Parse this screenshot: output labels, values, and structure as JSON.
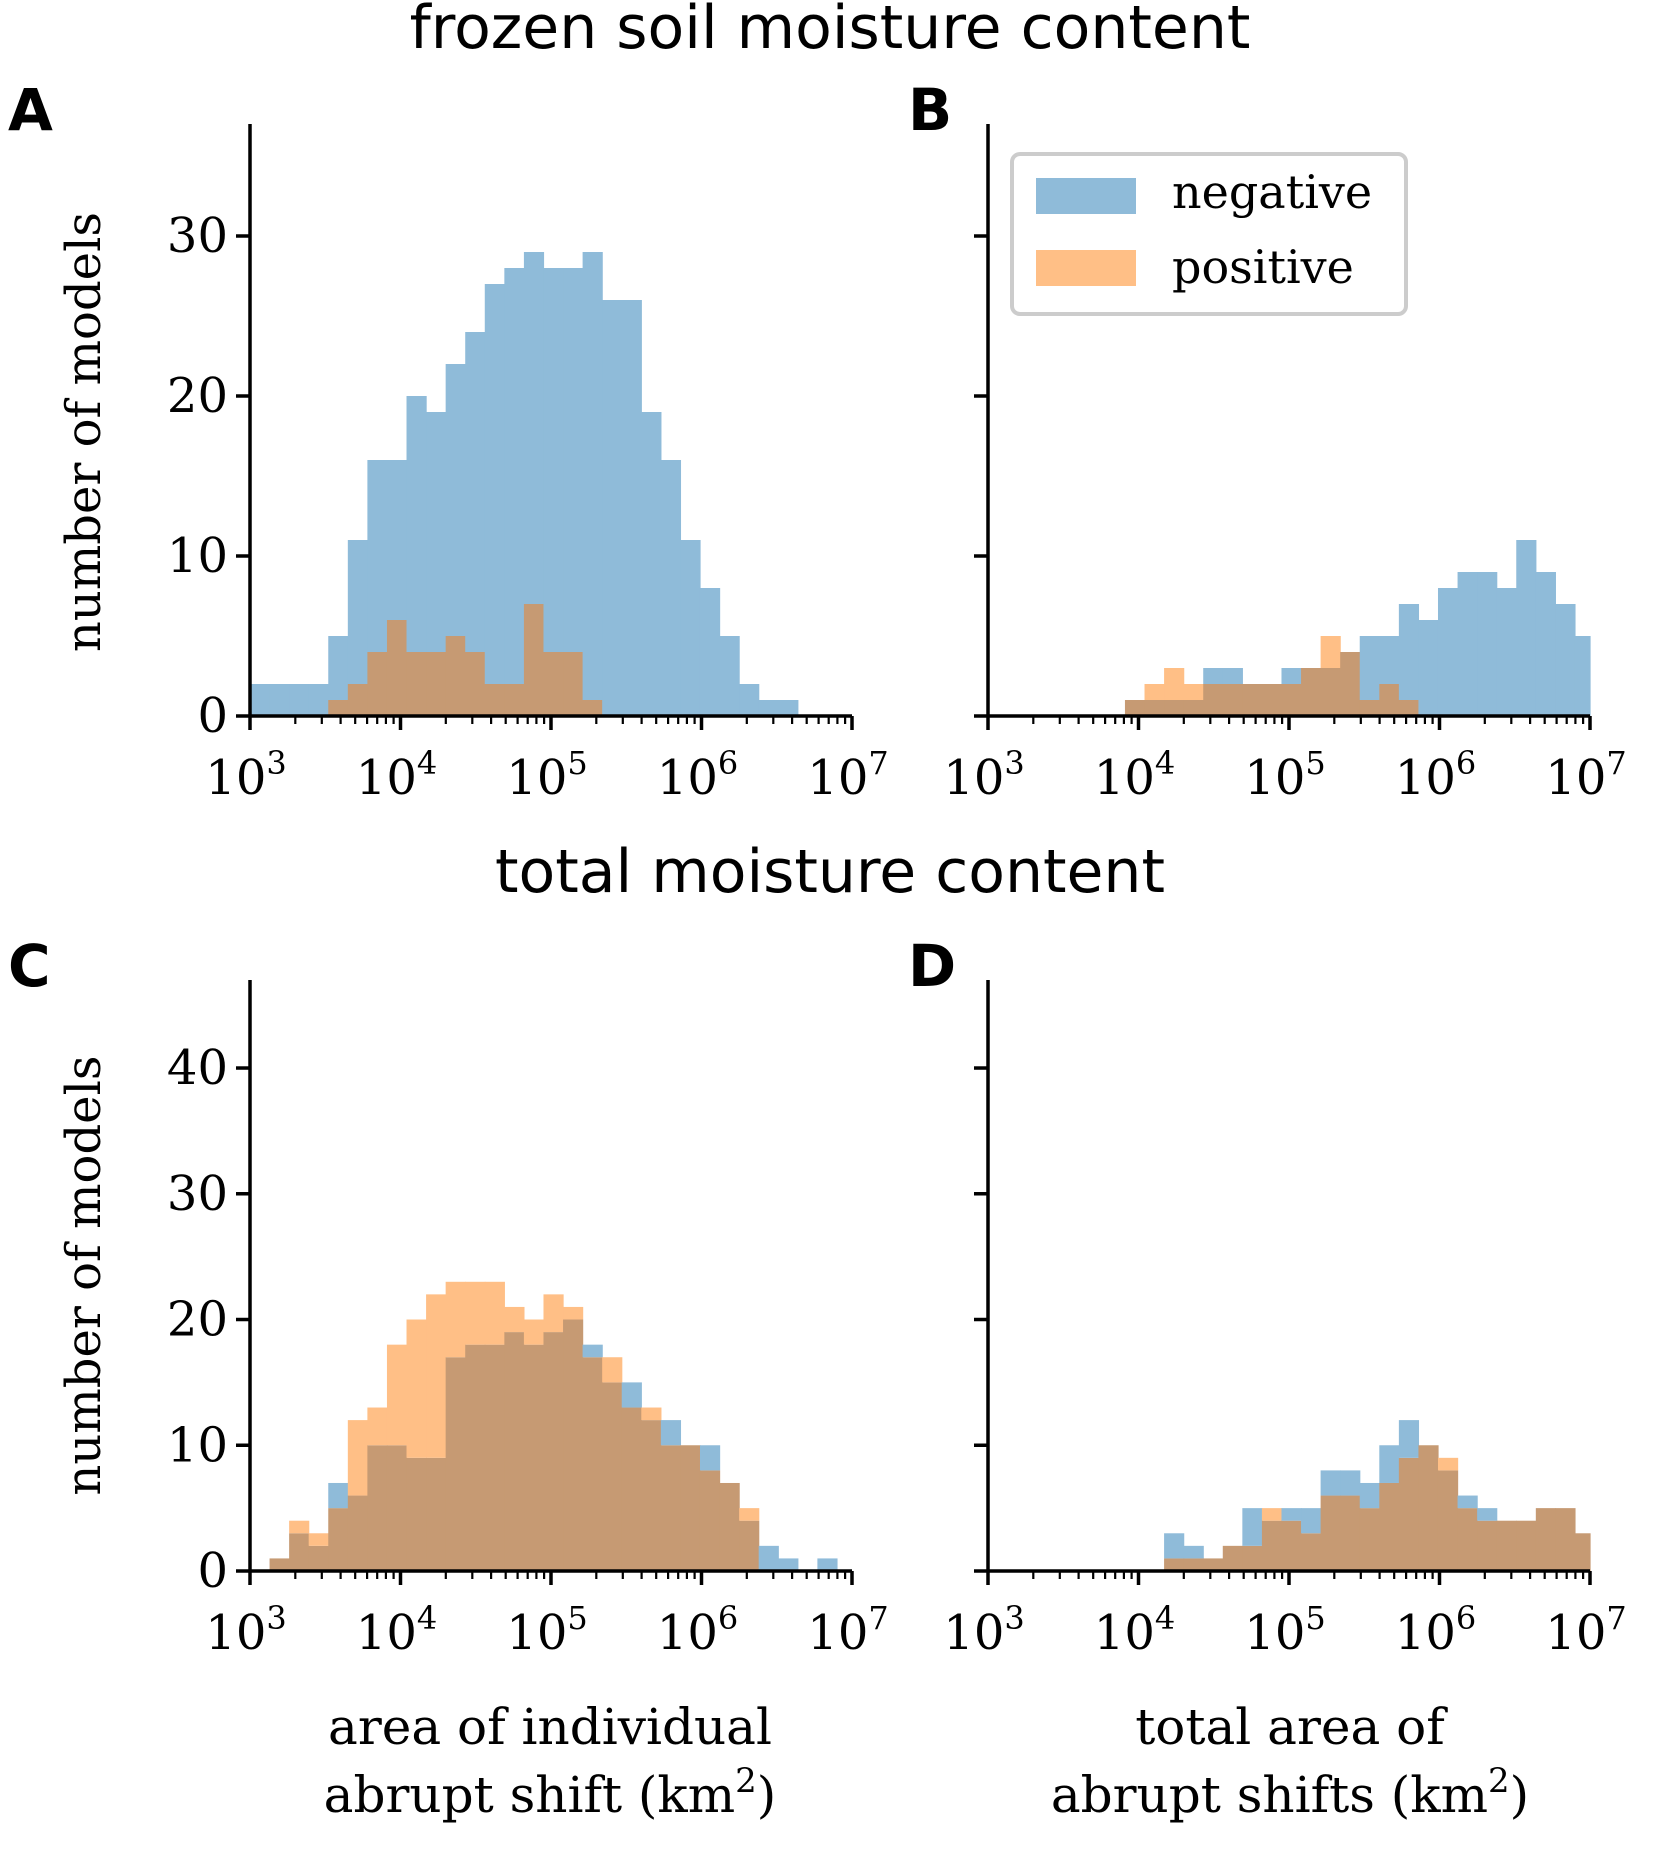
{
  "figure": {
    "top_title": "frozen soil moisture content",
    "bottom_title": "total moisture content"
  },
  "colors": {
    "negative": "#8fbbd9",
    "positive": "#ffbf86",
    "overlap": "#c69a73",
    "axis": "#000000"
  },
  "legend": {
    "negative": "negative",
    "positive": "positive"
  },
  "x_axis": {
    "log_min": 3,
    "log_max": 7,
    "tick_base": "10",
    "tick_exponents": [
      "3",
      "4",
      "5",
      "6",
      "7"
    ],
    "label_left_line1": "area of individual",
    "label_left_line2": "abrupt shift (km",
    "label_right_line1": "total area of",
    "label_right_line2": "abrupt shifts (km",
    "label_sup": "2",
    "label_close": ")"
  },
  "y_label": "number of models",
  "chart_data": [
    {
      "panel": "A",
      "type": "bar",
      "title": "frozen soil moisture content",
      "xlabel": "",
      "ylabel": "number of models",
      "xscale": "log",
      "xlim": [
        1000,
        10000000
      ],
      "ylim": [
        0,
        37
      ],
      "yticks": [
        "0",
        "10",
        "20",
        "30"
      ],
      "bin_start_log10": 3.0,
      "bin_width_log10": 0.13,
      "series": [
        {
          "name": "negative",
          "values": [
            2,
            2,
            2,
            2,
            5,
            11,
            16,
            16,
            20,
            19,
            22,
            24,
            27,
            28,
            29,
            28,
            28,
            29,
            26,
            26,
            19,
            16,
            11,
            8,
            5,
            2,
            1,
            1,
            0,
            0,
            0
          ]
        },
        {
          "name": "positive",
          "values": [
            0,
            0,
            0,
            0,
            1,
            2,
            4,
            6,
            4,
            4,
            5,
            4,
            2,
            2,
            7,
            4,
            4,
            1,
            0,
            0,
            0,
            0,
            0,
            0,
            0,
            0,
            0,
            0,
            0,
            0,
            0
          ]
        }
      ]
    },
    {
      "panel": "B",
      "type": "bar",
      "title": "",
      "xlabel": "",
      "ylabel": "",
      "xscale": "log",
      "xlim": [
        1000,
        10000000
      ],
      "ylim": [
        0,
        37
      ],
      "yticks": [
        "0",
        "10",
        "20",
        "30"
      ],
      "bin_start_log10": 3.0,
      "bin_width_log10": 0.13,
      "series": [
        {
          "name": "negative",
          "values": [
            0,
            0,
            0,
            0,
            0,
            0,
            0,
            1,
            1,
            1,
            1,
            3,
            3,
            2,
            2,
            3,
            3,
            3,
            4,
            5,
            5,
            7,
            6,
            8,
            9,
            9,
            8,
            11,
            9,
            7,
            5
          ]
        },
        {
          "name": "positive",
          "values": [
            0,
            0,
            0,
            0,
            0,
            0,
            0,
            1,
            2,
            3,
            2,
            2,
            2,
            2,
            2,
            2,
            3,
            5,
            4,
            1,
            2,
            1,
            0,
            0,
            0,
            0,
            0,
            0,
            0,
            0,
            0
          ]
        }
      ],
      "legend": [
        "negative",
        "positive"
      ]
    },
    {
      "panel": "C",
      "type": "bar",
      "title": "total moisture content",
      "xlabel": "area of individual abrupt shift (km2)",
      "ylabel": "number of models",
      "xscale": "log",
      "xlim": [
        1000,
        10000000
      ],
      "ylim": [
        0,
        47
      ],
      "yticks": [
        "0",
        "10",
        "20",
        "30",
        "40"
      ],
      "bin_start_log10": 3.0,
      "bin_width_log10": 0.13,
      "series": [
        {
          "name": "negative",
          "values": [
            0,
            1,
            3,
            2,
            7,
            6,
            10,
            10,
            9,
            9,
            17,
            18,
            18,
            19,
            18,
            19,
            20,
            18,
            15,
            15,
            12,
            12,
            10,
            10,
            7,
            4,
            2,
            1,
            0,
            1,
            0
          ]
        },
        {
          "name": "positive",
          "values": [
            0,
            1,
            4,
            3,
            5,
            12,
            13,
            18,
            20,
            22,
            23,
            23,
            23,
            21,
            20,
            22,
            21,
            17,
            17,
            13,
            13,
            10,
            10,
            8,
            7,
            5,
            0,
            0,
            0,
            0,
            0
          ]
        }
      ]
    },
    {
      "panel": "D",
      "type": "bar",
      "title": "",
      "xlabel": "total area of abrupt shifts (km2)",
      "ylabel": "",
      "xscale": "log",
      "xlim": [
        1000,
        10000000
      ],
      "ylim": [
        0,
        47
      ],
      "yticks": [
        "0",
        "10",
        "20",
        "30",
        "40"
      ],
      "bin_start_log10": 3.0,
      "bin_width_log10": 0.13,
      "series": [
        {
          "name": "negative",
          "values": [
            0,
            0,
            0,
            0,
            0,
            0,
            0,
            0,
            0,
            3,
            2,
            1,
            2,
            5,
            4,
            5,
            5,
            8,
            8,
            7,
            10,
            12,
            10,
            8,
            6,
            5,
            4,
            4,
            5,
            5,
            3
          ]
        },
        {
          "name": "positive",
          "values": [
            0,
            0,
            0,
            0,
            0,
            0,
            0,
            0,
            0,
            1,
            1,
            1,
            2,
            2,
            5,
            4,
            3,
            6,
            6,
            5,
            7,
            9,
            10,
            9,
            5,
            4,
            4,
            4,
            5,
            5,
            3
          ]
        }
      ]
    }
  ],
  "panels": [
    {
      "letter": "A"
    },
    {
      "letter": "B"
    },
    {
      "letter": "C"
    },
    {
      "letter": "D"
    }
  ]
}
